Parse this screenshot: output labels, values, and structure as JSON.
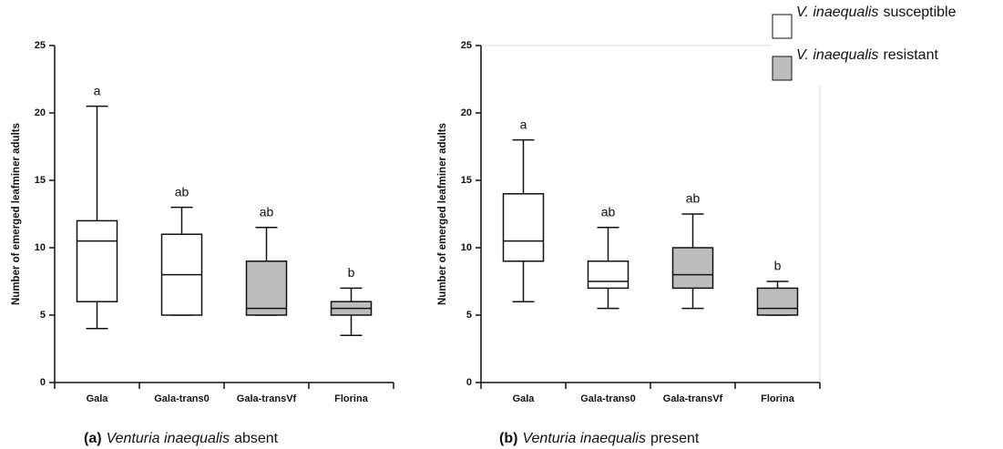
{
  "chart_data": [
    {
      "type": "box",
      "ylabel": "Number of emerged leafminer adults",
      "categories": [
        "Gala",
        "Gala-trans0",
        "Gala-transVf",
        "Florina"
      ],
      "min": [
        4,
        5,
        5,
        3.5
      ],
      "q1": [
        6,
        5,
        5,
        5
      ],
      "median": [
        10.5,
        8,
        5.5,
        5.5
      ],
      "q3": [
        12,
        11,
        9,
        6
      ],
      "max": [
        20.5,
        13,
        11.5,
        7
      ],
      "fills": [
        "#ffffff",
        "#ffffff",
        "#bdbdbd",
        "#bdbdbd"
      ],
      "letters": [
        "a",
        "ab",
        "ab",
        "b"
      ],
      "ylim": [
        0,
        25
      ],
      "yticks": [
        0,
        5,
        10,
        15,
        20,
        25
      ],
      "caption": {
        "tag": "(a)",
        "species": "Venturia inaequalis",
        "text": "absent"
      }
    },
    {
      "type": "box",
      "ylabel": "Number of emerged leafminer adults",
      "categories": [
        "Gala",
        "Gala-trans0",
        "Gala-transVf",
        "Florina"
      ],
      "min": [
        6,
        5.5,
        5.5,
        5
      ],
      "q1": [
        9,
        7,
        7,
        5
      ],
      "median": [
        10.5,
        7.5,
        8,
        5.5
      ],
      "q3": [
        14,
        9,
        10,
        7
      ],
      "max": [
        18,
        11.5,
        12.5,
        7.5
      ],
      "fills": [
        "#ffffff",
        "#ffffff",
        "#bdbdbd",
        "#bdbdbd"
      ],
      "letters": [
        "a",
        "ab",
        "ab",
        "b"
      ],
      "ylim": [
        0,
        25
      ],
      "yticks": [
        0,
        5,
        10,
        15,
        20,
        25
      ],
      "caption": {
        "tag": "(b)",
        "species": "Venturia inaequalis",
        "text": "present"
      }
    }
  ],
  "legend": [
    {
      "species": "V. inaequalis",
      "text": "susceptible",
      "color": "#ffffff"
    },
    {
      "species": "V. inaequalis",
      "text": "resistant",
      "color": "#bdbdbd"
    }
  ]
}
